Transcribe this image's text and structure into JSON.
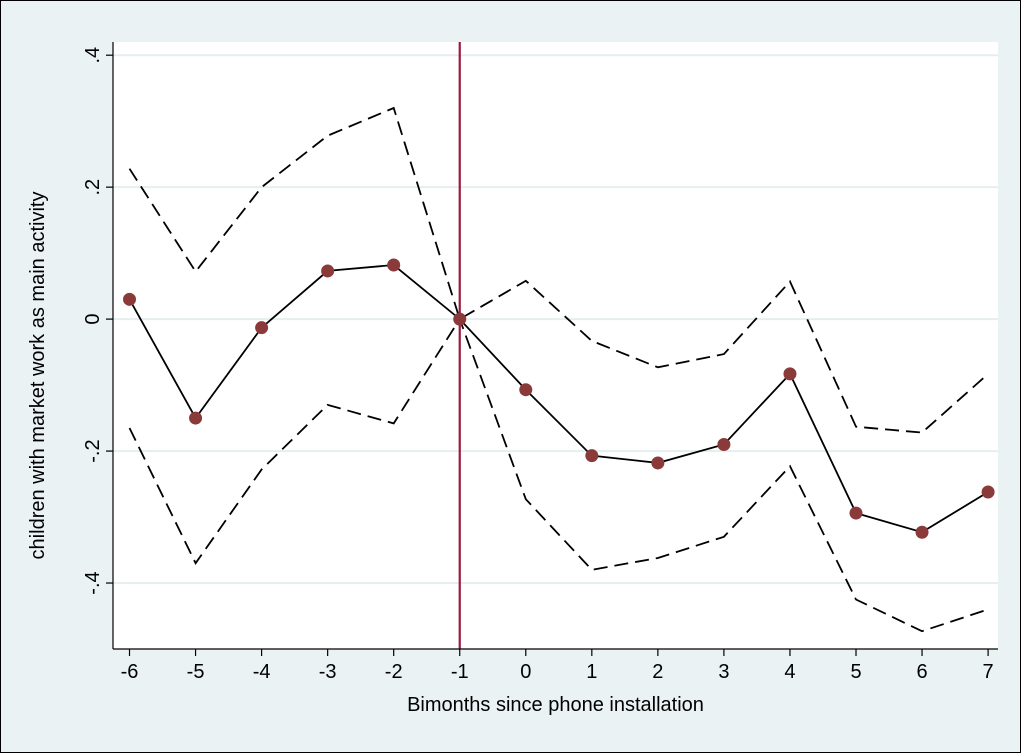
{
  "chart_data": {
    "type": "line",
    "title": "",
    "xlabel": "Bimonths since phone installation",
    "ylabel": "children with market work as main activity",
    "xlim": [
      -6.25,
      7.15
    ],
    "ylim": [
      -0.5,
      0.42
    ],
    "x_ticks": [
      -6,
      -5,
      -4,
      -3,
      -2,
      -1,
      0,
      1,
      2,
      3,
      4,
      5,
      6,
      7
    ],
    "x_tick_labels": [
      "-6",
      "-5",
      "-4",
      "-3",
      "-2",
      "-1",
      "0",
      "1",
      "2",
      "3",
      "4",
      "5",
      "6",
      "7"
    ],
    "y_ticks": [
      -0.4,
      -0.2,
      0,
      0.2,
      0.4
    ],
    "y_tick_labels": [
      "-.4",
      "-.2",
      "0",
      ".2",
      ".4"
    ],
    "grid": true,
    "reference_line_x": -1,
    "x": [
      -6,
      -5,
      -4,
      -3,
      -2,
      -1,
      0,
      1,
      2,
      3,
      4,
      5,
      6,
      7
    ],
    "series": [
      {
        "role": "estimate",
        "style": "solid-with-markers",
        "values": [
          0.03,
          -0.15,
          -0.013,
          0.073,
          0.082,
          0.0,
          -0.107,
          -0.207,
          -0.218,
          -0.19,
          -0.083,
          -0.294,
          -0.323,
          -0.262
        ]
      },
      {
        "role": "upper-ci",
        "style": "dashed",
        "values": [
          0.228,
          0.072,
          0.2,
          0.278,
          0.32,
          0.0,
          0.058,
          -0.033,
          -0.073,
          -0.053,
          0.057,
          -0.163,
          -0.172,
          -0.083
        ]
      },
      {
        "role": "lower-ci",
        "style": "dashed",
        "values": [
          -0.165,
          -0.37,
          -0.228,
          -0.13,
          -0.158,
          0.0,
          -0.273,
          -0.38,
          -0.362,
          -0.33,
          -0.223,
          -0.425,
          -0.473,
          -0.44
        ]
      }
    ],
    "colors": {
      "frame_background": "#eaf2f3",
      "plot_background": "#ffffff",
      "grid": "#e6eeef",
      "line": "#000000",
      "marker": "#8b3a3a",
      "reference_line": "#9c1a3e"
    }
  }
}
